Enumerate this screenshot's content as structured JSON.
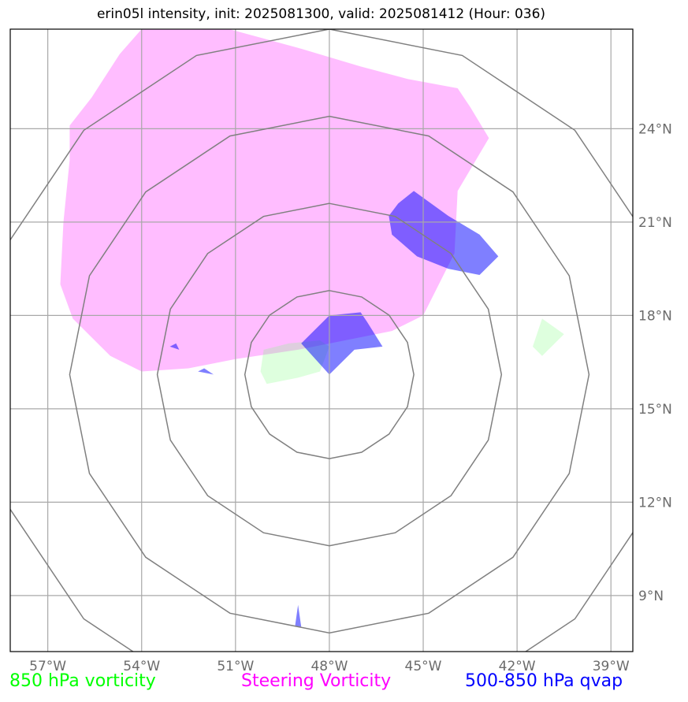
{
  "title": "erin05l intensity, init: 2025081300, valid: 2025081412 (Hour: 036)",
  "map": {
    "lon_range": [
      -58.2,
      -38.3
    ],
    "lat_range": [
      7.2,
      27.2
    ],
    "lon_ticks": [
      -57,
      -54,
      -51,
      -48,
      -45,
      -42,
      -39
    ],
    "lat_ticks": [
      9,
      12,
      15,
      18,
      21,
      24
    ],
    "lon_tick_labels": [
      "57°W",
      "54°W",
      "51°W",
      "48°W",
      "45°W",
      "42°W",
      "39°W"
    ],
    "lat_tick_labels": [
      "9°N",
      "12°N",
      "15°N",
      "18°N",
      "21°N",
      "24°N"
    ],
    "grid": true,
    "storm_center": {
      "lon": -48.0,
      "lat": 16.1
    },
    "range_rings_deg": [
      2.7,
      5.5,
      8.3,
      11.1
    ]
  },
  "layers": {
    "steering_vorticity": {
      "color": "#ff00ff",
      "areas": [
        [
          [
            -54.0,
            27.2
          ],
          [
            -51.2,
            27.2
          ],
          [
            -49.0,
            26.6
          ],
          [
            -47.0,
            26.0
          ],
          [
            -45.5,
            25.6
          ],
          [
            -43.9,
            25.3
          ],
          [
            -43.5,
            24.7
          ],
          [
            -42.9,
            23.7
          ],
          [
            -43.9,
            22.0
          ],
          [
            -44.0,
            20.0
          ],
          [
            -45.0,
            18.0
          ],
          [
            -46.0,
            17.5
          ],
          [
            -47.5,
            17.2
          ],
          [
            -49.0,
            16.9
          ],
          [
            -51.0,
            16.6
          ],
          [
            -52.5,
            16.3
          ],
          [
            -54.0,
            16.2
          ],
          [
            -55.0,
            16.7
          ],
          [
            -56.2,
            17.9
          ],
          [
            -56.6,
            19.0
          ],
          [
            -56.5,
            21.0
          ],
          [
            -56.3,
            23.0
          ],
          [
            -56.3,
            24.1
          ],
          [
            -55.6,
            25.0
          ],
          [
            -54.7,
            26.4
          ]
        ]
      ]
    },
    "vorticity_850": {
      "color": "#80ff80",
      "areas": [
        [
          [
            -50.1,
            16.9
          ],
          [
            -49.3,
            17.1
          ],
          [
            -48.3,
            17.2
          ],
          [
            -48.0,
            17.0
          ],
          [
            -48.3,
            16.2
          ],
          [
            -49.0,
            16.0
          ],
          [
            -50.0,
            15.8
          ],
          [
            -50.2,
            16.2
          ]
        ],
        [
          [
            -41.2,
            17.9
          ],
          [
            -40.5,
            17.4
          ],
          [
            -41.2,
            16.7
          ],
          [
            -41.5,
            17.0
          ]
        ]
      ]
    },
    "qvap_500_850": {
      "color": "#0000ff",
      "areas": [
        [
          [
            -48.9,
            17.1
          ],
          [
            -48.0,
            18.0
          ],
          [
            -47.0,
            18.1
          ],
          [
            -46.8,
            17.8
          ],
          [
            -46.3,
            17.0
          ],
          [
            -47.2,
            16.9
          ],
          [
            -48.0,
            16.1
          ]
        ],
        [
          [
            -45.3,
            22.0
          ],
          [
            -44.2,
            21.2
          ],
          [
            -43.2,
            20.6
          ],
          [
            -42.6,
            19.9
          ],
          [
            -43.2,
            19.3
          ],
          [
            -44.2,
            19.5
          ],
          [
            -45.2,
            19.9
          ],
          [
            -46.0,
            20.6
          ],
          [
            -46.1,
            21.2
          ],
          [
            -45.8,
            21.6
          ]
        ],
        [
          [
            -52.9,
            17.1
          ],
          [
            -52.8,
            16.9
          ],
          [
            -53.1,
            17.0
          ]
        ],
        [
          [
            -52.2,
            16.2
          ],
          [
            -51.7,
            16.1
          ],
          [
            -52.0,
            16.3
          ]
        ],
        [
          [
            -49.0,
            8.7
          ],
          [
            -49.1,
            8.0
          ],
          [
            -48.9,
            8.0
          ]
        ]
      ]
    }
  },
  "legend": {
    "vort850": {
      "label": "850 hPa vorticity",
      "color": "#00ff00"
    },
    "steering": {
      "label": "Steering Vorticity",
      "color": "#ff00ff"
    },
    "qvap": {
      "label": "500-850 hPa qvap",
      "color": "#0000ff"
    }
  }
}
